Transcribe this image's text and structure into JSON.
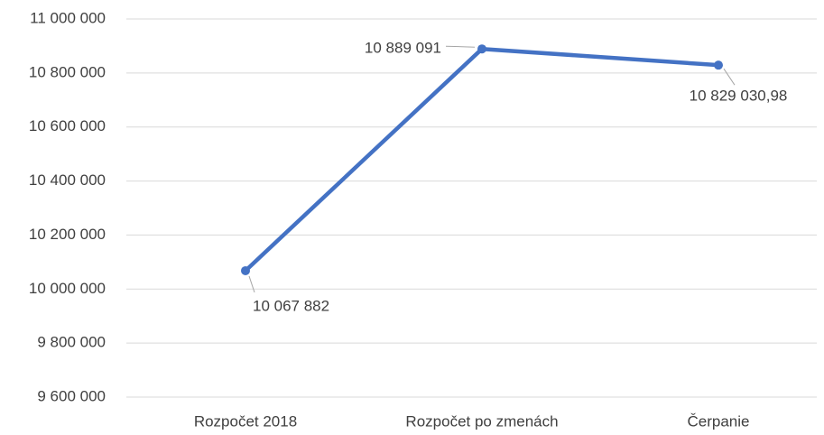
{
  "chart_data": {
    "type": "line",
    "categories": [
      "Rozpočet 2018",
      "Rozpočet po zmenách",
      "Čerpanie"
    ],
    "series": [
      {
        "color": "#4472c4",
        "values": [
          10067882,
          10889091,
          10829030.98
        ],
        "value_labels": [
          "10 067 882",
          "10 889 091",
          "10 829 030,98"
        ]
      }
    ],
    "ylim": [
      9600000,
      11000000
    ],
    "yticks": [
      {
        "value": 9600000,
        "label": "9 600 000"
      },
      {
        "value": 9800000,
        "label": "9 800 000"
      },
      {
        "value": 10000000,
        "label": "10 000 000"
      },
      {
        "value": 10200000,
        "label": "10 200 000"
      },
      {
        "value": 10400000,
        "label": "10 400 000"
      },
      {
        "value": 10600000,
        "label": "10 600 000"
      },
      {
        "value": 10800000,
        "label": "10 800 000"
      },
      {
        "value": 11000000,
        "label": "11 000 000"
      }
    ],
    "grid": true
  }
}
